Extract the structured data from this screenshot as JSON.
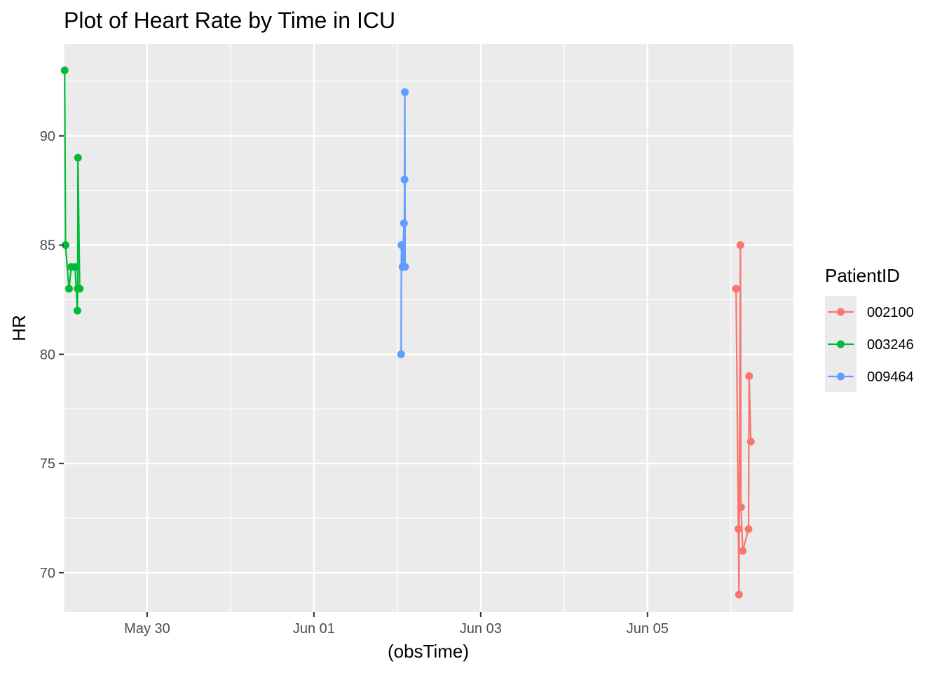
{
  "chart_data": {
    "type": "line",
    "title": "Plot of Heart Rate by Time in ICU",
    "xlabel": "(obsTime)",
    "ylabel": "HR",
    "x_type": "date",
    "xlim": [
      "2023-05-29T00:00",
      "2023-06-06T18:00"
    ],
    "ylim": [
      68.2,
      94.2
    ],
    "x_ticks": [
      {
        "value": "2023-05-30T00:00",
        "label": "May 30"
      },
      {
        "value": "2023-06-01T00:00",
        "label": "Jun 01"
      },
      {
        "value": "2023-06-03T00:00",
        "label": "Jun 03"
      },
      {
        "value": "2023-06-05T00:00",
        "label": "Jun 05"
      }
    ],
    "x_minor": [
      "2023-05-29T00:00",
      "2023-05-31T00:00",
      "2023-06-02T00:00",
      "2023-06-04T00:00",
      "2023-06-06T00:00"
    ],
    "y_ticks": [
      70,
      75,
      80,
      85,
      90
    ],
    "y_minor": [
      72.5,
      77.5,
      82.5,
      87.5,
      92.5
    ],
    "grid": true,
    "panel_background": "#ebebeb",
    "legend": {
      "title": "PatientID",
      "position": "right"
    },
    "series": [
      {
        "name": "002100",
        "color": "#f8766d",
        "points": [
          {
            "x": "2023-06-06T01:30",
            "y": 83
          },
          {
            "x": "2023-06-06T02:10",
            "y": 72
          },
          {
            "x": "2023-06-06T02:20",
            "y": 69
          },
          {
            "x": "2023-06-06T02:45",
            "y": 85
          },
          {
            "x": "2023-06-06T02:55",
            "y": 73
          },
          {
            "x": "2023-06-06T03:25",
            "y": 71
          },
          {
            "x": "2023-06-06T05:05",
            "y": 72
          },
          {
            "x": "2023-06-06T05:15",
            "y": 79
          },
          {
            "x": "2023-06-06T05:45",
            "y": 76
          }
        ]
      },
      {
        "name": "003246",
        "color": "#00ba38",
        "points": [
          {
            "x": "2023-05-29T00:15",
            "y": 93
          },
          {
            "x": "2023-05-29T00:30",
            "y": 85
          },
          {
            "x": "2023-05-29T01:30",
            "y": 83
          },
          {
            "x": "2023-05-29T02:10",
            "y": 84
          },
          {
            "x": "2023-05-29T03:15",
            "y": 84
          },
          {
            "x": "2023-05-29T03:55",
            "y": 82
          },
          {
            "x": "2023-05-29T04:05",
            "y": 89
          },
          {
            "x": "2023-05-29T04:00",
            "y": 83
          },
          {
            "x": "2023-05-29T04:35",
            "y": 83
          }
        ]
      },
      {
        "name": "009464",
        "color": "#619cff",
        "points": [
          {
            "x": "2023-06-02T01:05",
            "y": 80
          },
          {
            "x": "2023-06-02T01:10",
            "y": 85
          },
          {
            "x": "2023-06-02T01:30",
            "y": 84
          },
          {
            "x": "2023-06-02T01:55",
            "y": 86
          },
          {
            "x": "2023-06-02T02:00",
            "y": 84
          },
          {
            "x": "2023-06-02T02:05",
            "y": 88
          },
          {
            "x": "2023-06-02T02:10",
            "y": 92
          },
          {
            "x": "2023-06-02T02:15",
            "y": 84
          }
        ]
      }
    ]
  }
}
